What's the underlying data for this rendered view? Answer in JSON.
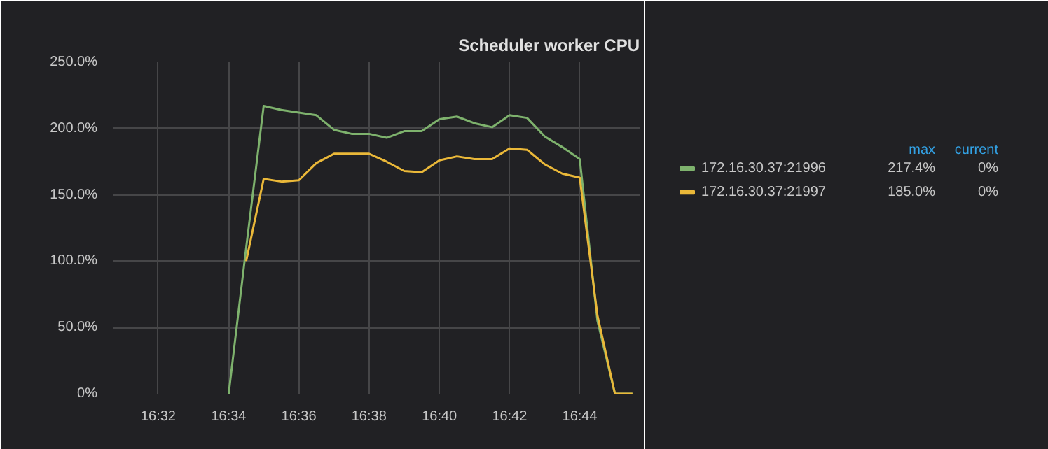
{
  "chart_data": {
    "type": "line",
    "title": "Scheduler worker CPU",
    "x": [
      16.5667,
      16.575,
      16.5833,
      16.5917,
      16.6,
      16.6083,
      16.6167,
      16.625,
      16.6333,
      16.6417,
      16.65,
      16.6583,
      16.6667,
      16.675,
      16.6833,
      16.6917,
      16.7,
      16.7083,
      16.7167,
      16.725,
      16.7333,
      16.7417,
      16.75,
      16.7583
    ],
    "series": [
      {
        "name": "172.16.30.37:21996",
        "color": "#7eb26d",
        "values": [
          0,
          110,
          217,
          214,
          212,
          210,
          199,
          196,
          196,
          193,
          198,
          198,
          207,
          209,
          204,
          201,
          210,
          208,
          194,
          186,
          177,
          55,
          0,
          0
        ]
      },
      {
        "name": "172.16.30.37:21997",
        "color": "#eab839",
        "values": [
          null,
          100,
          162,
          160,
          161,
          174,
          181,
          181,
          181,
          175,
          168,
          167,
          176,
          179,
          177,
          177,
          185,
          184,
          173,
          166,
          163,
          59,
          0,
          0
        ]
      }
    ],
    "xlim": [
      16.5117,
      16.7617
    ],
    "xticks": [
      {
        "value": 16.5333,
        "label": "16:32"
      },
      {
        "value": 16.5667,
        "label": "16:34"
      },
      {
        "value": 16.6,
        "label": "16:36"
      },
      {
        "value": 16.6333,
        "label": "16:38"
      },
      {
        "value": 16.6667,
        "label": "16:40"
      },
      {
        "value": 16.7,
        "label": "16:42"
      },
      {
        "value": 16.7333,
        "label": "16:44"
      }
    ],
    "ylim": [
      0,
      250
    ],
    "yticks": [
      {
        "value": 0,
        "label": "0%"
      },
      {
        "value": 50,
        "label": "50.0%"
      },
      {
        "value": 100,
        "label": "100.0%"
      },
      {
        "value": 150,
        "label": "150.0%"
      },
      {
        "value": 200,
        "label": "200.0%"
      },
      {
        "value": 250,
        "label": "250.0%"
      }
    ],
    "grid": true,
    "legend": "right",
    "marker": "none",
    "line_style": "solid",
    "annotations": [
      "max",
      "current",
      "217.4%",
      "0%",
      "185.0%",
      "0%"
    ]
  }
}
